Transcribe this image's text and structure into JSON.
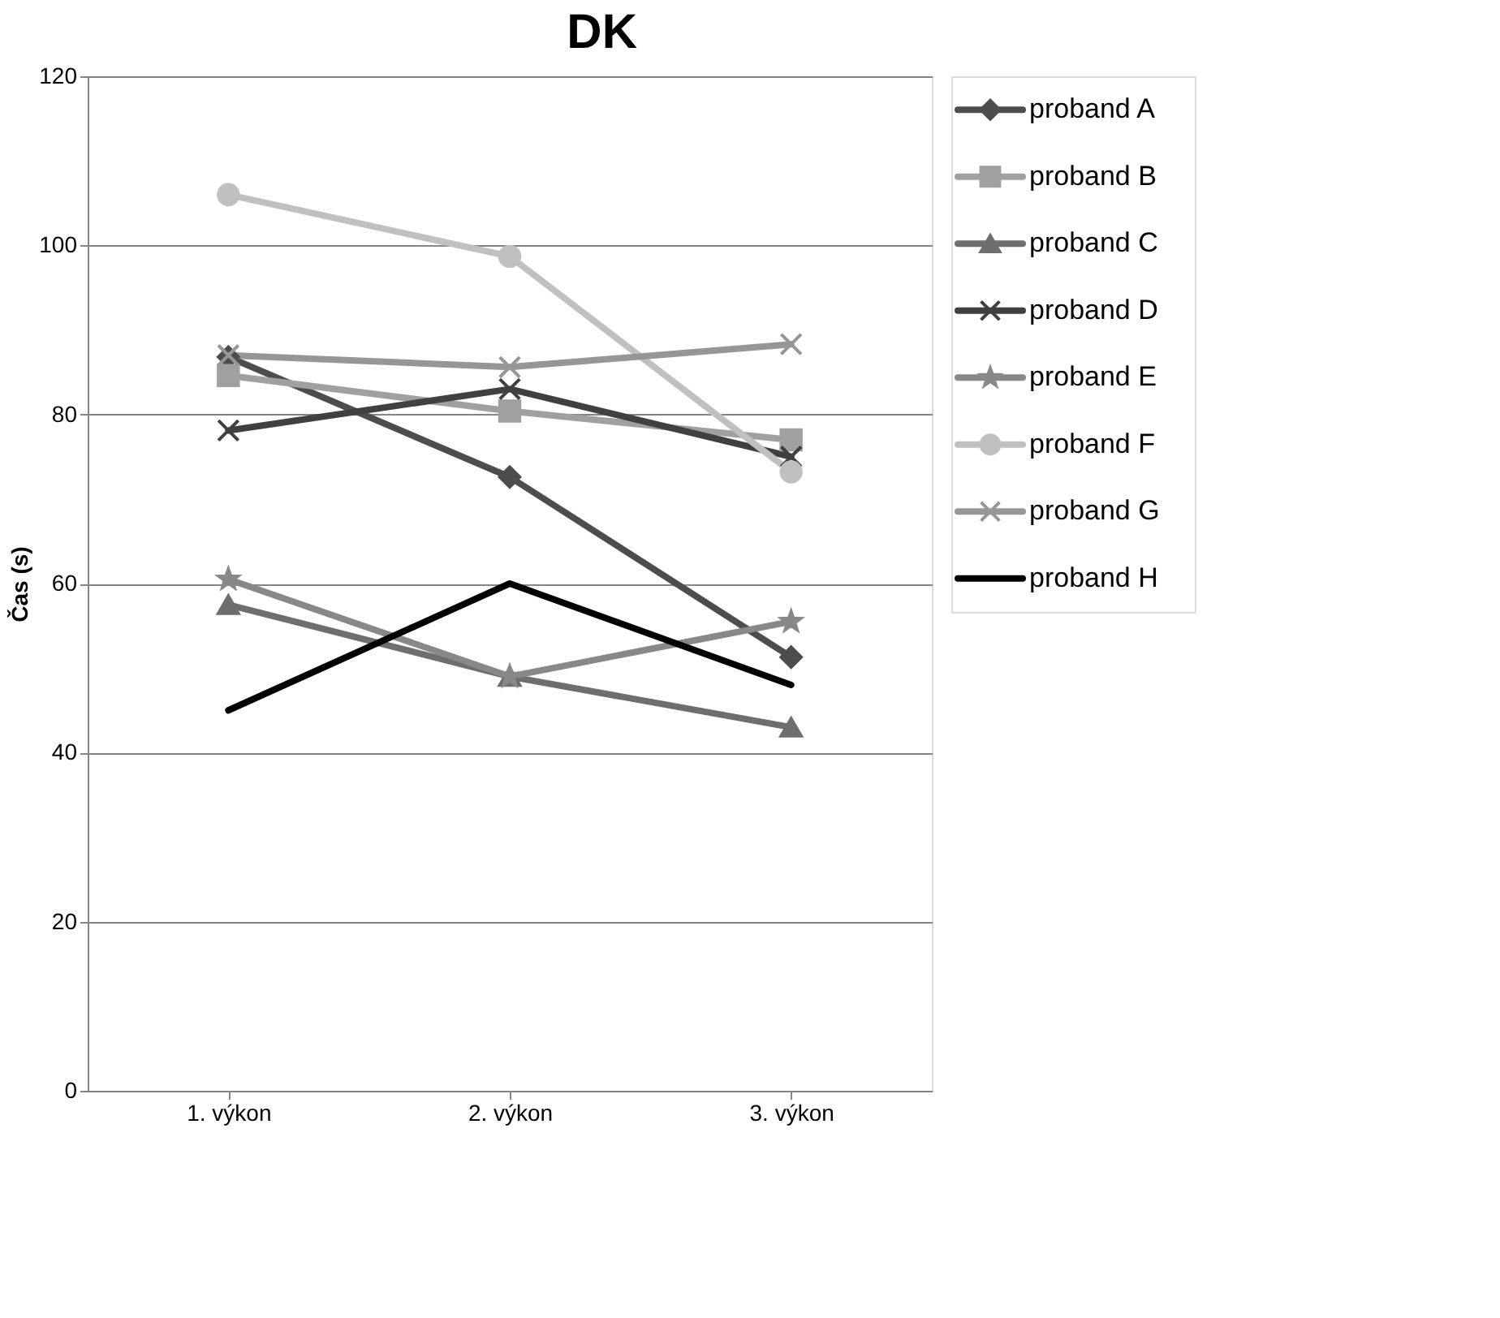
{
  "chart_data": {
    "type": "line",
    "title": "DK",
    "ylabel": "Čas (s)",
    "categories": [
      "1. výkon",
      "2. výkon",
      "3. výkon"
    ],
    "ylim": [
      0,
      120
    ],
    "yticks": [
      0,
      20,
      40,
      60,
      80,
      100,
      120
    ],
    "grid": "y",
    "legend": "right",
    "line_style": "solid",
    "series": [
      {
        "name": "proband A",
        "color": "#4d4d4d",
        "marker": "diamond",
        "values": [
          86.8,
          72.6,
          51.3
        ]
      },
      {
        "name": "proband B",
        "color": "#a0a0a0",
        "marker": "square",
        "values": [
          84.6,
          80.4,
          77
        ]
      },
      {
        "name": "proband C",
        "color": "#6e6e6e",
        "marker": "triangle",
        "values": [
          57.5,
          49,
          43
        ]
      },
      {
        "name": "proband D",
        "color": "#404040",
        "marker": "cross",
        "values": [
          78.1,
          83,
          75
        ]
      },
      {
        "name": "proband E",
        "color": "#888888",
        "marker": "star",
        "values": [
          60.5,
          49,
          55.5
        ]
      },
      {
        "name": "proband F",
        "color": "#c0c0c0",
        "marker": "circle",
        "values": [
          106,
          98.7,
          73.2
        ]
      },
      {
        "name": "proband G",
        "color": "#969696",
        "marker": "cross",
        "values": [
          87,
          85.6,
          88.3
        ]
      },
      {
        "name": "proband H",
        "color": "#000000",
        "marker": "none",
        "values": [
          45,
          60,
          48
        ]
      }
    ]
  }
}
